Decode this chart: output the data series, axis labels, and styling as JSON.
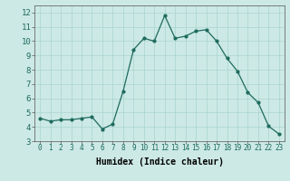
{
  "x": [
    0,
    1,
    2,
    3,
    4,
    5,
    6,
    7,
    8,
    9,
    10,
    11,
    12,
    13,
    14,
    15,
    16,
    17,
    18,
    19,
    20,
    21,
    22,
    23
  ],
  "y": [
    4.6,
    4.4,
    4.5,
    4.5,
    4.6,
    4.7,
    3.85,
    4.2,
    6.5,
    9.4,
    10.2,
    10.0,
    11.8,
    10.2,
    10.35,
    10.7,
    10.8,
    10.0,
    8.8,
    7.9,
    6.4,
    5.7,
    4.05,
    3.5
  ],
  "line_color": "#1e6b5e",
  "marker": "o",
  "markersize": 2.0,
  "linewidth": 0.9,
  "background_color": "#cce9e5",
  "grid_color": "#aad4cf",
  "xlabel": "Humidex (Indice chaleur)",
  "xlabel_fontsize": 7,
  "xlim": [
    -0.5,
    23.5
  ],
  "ylim": [
    3,
    12.5
  ],
  "yticks": [
    3,
    4,
    5,
    6,
    7,
    8,
    9,
    10,
    11,
    12
  ],
  "xticks": [
    0,
    1,
    2,
    3,
    4,
    5,
    6,
    7,
    8,
    9,
    10,
    11,
    12,
    13,
    14,
    15,
    16,
    17,
    18,
    19,
    20,
    21,
    22,
    23
  ],
  "tick_fontsize": 5.5,
  "ytick_fontsize": 6.5,
  "axis_color": "#555555"
}
